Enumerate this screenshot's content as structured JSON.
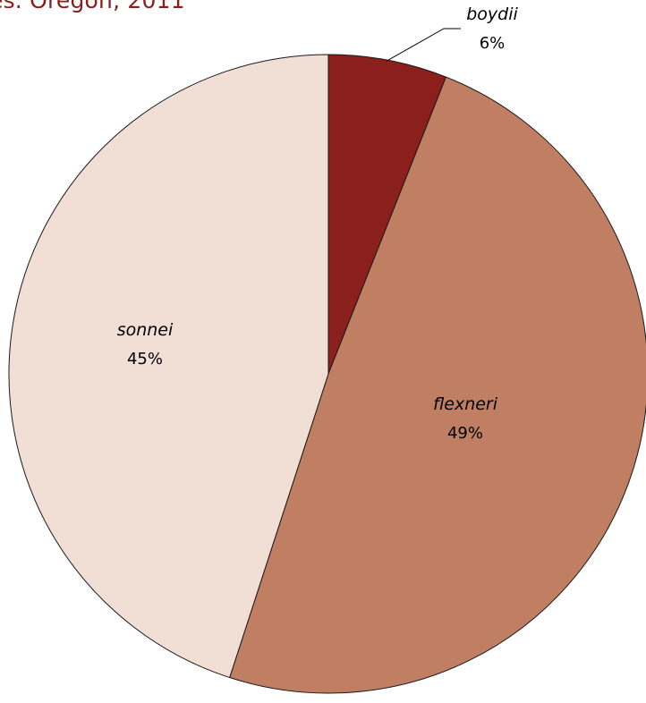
{
  "chart_data": {
    "type": "pie",
    "title": "es. Oregon, 2011",
    "slices": [
      {
        "label": "boydii",
        "value": 6,
        "value_label": "6%",
        "color": "#8b1f1b"
      },
      {
        "label": "flexneri",
        "value": 49,
        "value_label": "49%",
        "color": "#c07e63"
      },
      {
        "label": "sonnei",
        "value": 45,
        "value_label": "45%",
        "color": "#f1ded5"
      }
    ],
    "start_angle": "12 o'clock",
    "direction": "clockwise",
    "legend": "none"
  }
}
